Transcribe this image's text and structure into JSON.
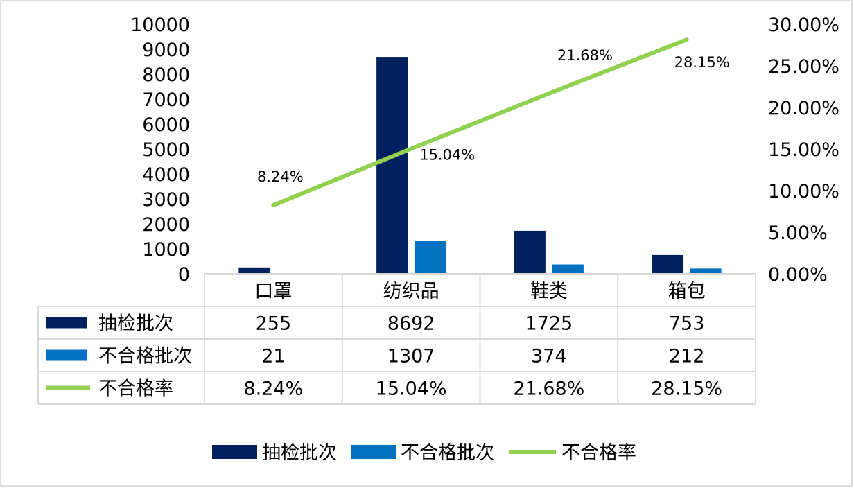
{
  "chart_data": {
    "type": "bar",
    "categories": [
      "口罩",
      "纺织品",
      "鞋类",
      "箱包"
    ],
    "series": [
      {
        "name": "抽检批次",
        "kind": "bar",
        "axis": "left",
        "color": "#002060",
        "values": [
          255,
          8692,
          1725,
          753
        ]
      },
      {
        "name": "不合格批次",
        "kind": "bar",
        "axis": "left",
        "color": "#0070C0",
        "values": [
          21,
          1307,
          374,
          212
        ]
      },
      {
        "name": "不合格率",
        "kind": "line",
        "axis": "right",
        "color": "#92D050",
        "values": [
          8.24,
          15.04,
          21.68,
          28.15
        ]
      }
    ],
    "data_labels": [
      "8.24%",
      "15.04%",
      "21.68%",
      "28.15%"
    ],
    "left_axis": {
      "min": 0,
      "max": 10000,
      "step": 1000,
      "ticks": [
        "0",
        "1000",
        "2000",
        "3000",
        "4000",
        "5000",
        "6000",
        "7000",
        "8000",
        "9000",
        "10000"
      ]
    },
    "right_axis": {
      "min": 0,
      "max": 30,
      "step": 5,
      "ticks": [
        "0.00%",
        "5.00%",
        "10.00%",
        "15.00%",
        "20.00%",
        "25.00%",
        "30.00%"
      ]
    },
    "data_table": {
      "rows": [
        {
          "name": "抽检批次",
          "cells": [
            "255",
            "8692",
            "1725",
            "753"
          ]
        },
        {
          "name": "不合格批次",
          "cells": [
            "21",
            "1307",
            "374",
            "212"
          ]
        },
        {
          "name": "不合格率",
          "cells": [
            "8.24%",
            "15.04%",
            "21.68%",
            "28.15%"
          ]
        }
      ]
    },
    "legend": {
      "position": "bottom",
      "items": [
        "抽检批次",
        "不合格批次",
        "不合格率"
      ]
    },
    "grid": false
  }
}
